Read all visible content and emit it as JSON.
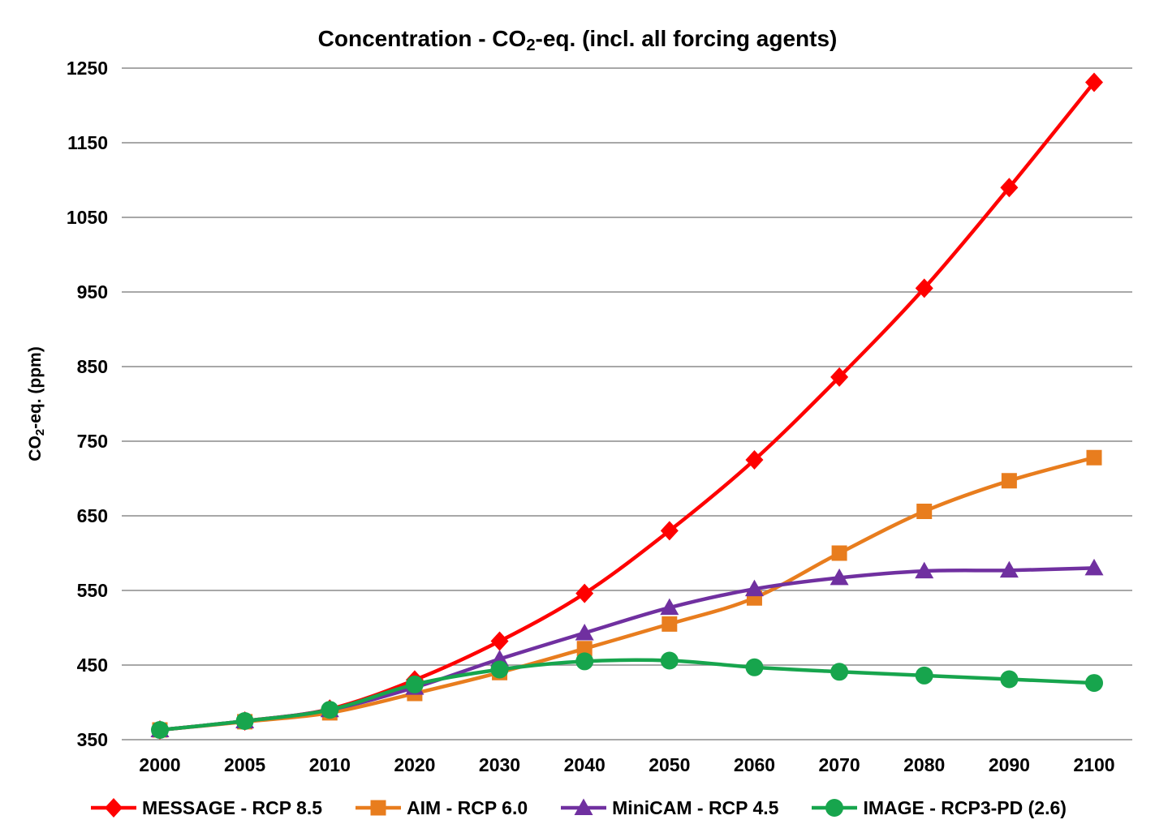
{
  "title": {
    "prefix": "Concentration - CO",
    "subscript": "2",
    "suffix": "-eq. (incl. all forcing agents)",
    "text": "Concentration - CO2-eq. (incl. all forcing agents)"
  },
  "y_axis": {
    "prefix": "CO",
    "subscript": "2",
    "suffix": "-eq. (ppm)",
    "text": "CO2-eq. (ppm)"
  },
  "chart_data": {
    "type": "line",
    "title": "Concentration - CO2-eq. (incl. all forcing agents)",
    "ylabel": "CO2-eq. (ppm)",
    "xlabel": "",
    "x": [
      2000,
      2005,
      2010,
      2020,
      2030,
      2040,
      2050,
      2060,
      2070,
      2080,
      2090,
      2100
    ],
    "ylim": [
      350,
      1250
    ],
    "yticks": [
      350,
      450,
      550,
      650,
      750,
      850,
      950,
      1050,
      1150,
      1250
    ],
    "grid": true,
    "gridline_color": "#8C8C8C",
    "legend_position": "bottom",
    "series": [
      {
        "name": "MESSAGE - RCP 8.5",
        "color": "#FE0000",
        "marker": "diamond",
        "values": [
          363,
          375,
          391,
          430,
          482,
          546,
          630,
          725,
          836,
          955,
          1090,
          1231
        ]
      },
      {
        "name": "AIM - RCP 6.0",
        "color": "#E87D1E",
        "marker": "square",
        "values": [
          363,
          374,
          386,
          412,
          440,
          472,
          505,
          540,
          600,
          656,
          697,
          728
        ]
      },
      {
        "name": "MiniCAM - RCP 4.5",
        "color": "#7030A0",
        "marker": "triangle",
        "values": [
          363,
          375,
          390,
          420,
          458,
          493,
          527,
          552,
          567,
          576,
          577,
          580
        ]
      },
      {
        "name": "IMAGE - RCP3-PD (2.6)",
        "color": "#17A54D",
        "marker": "circle",
        "values": [
          363,
          375,
          390,
          424,
          444,
          455,
          456,
          447,
          441,
          436,
          431,
          426
        ]
      }
    ]
  }
}
